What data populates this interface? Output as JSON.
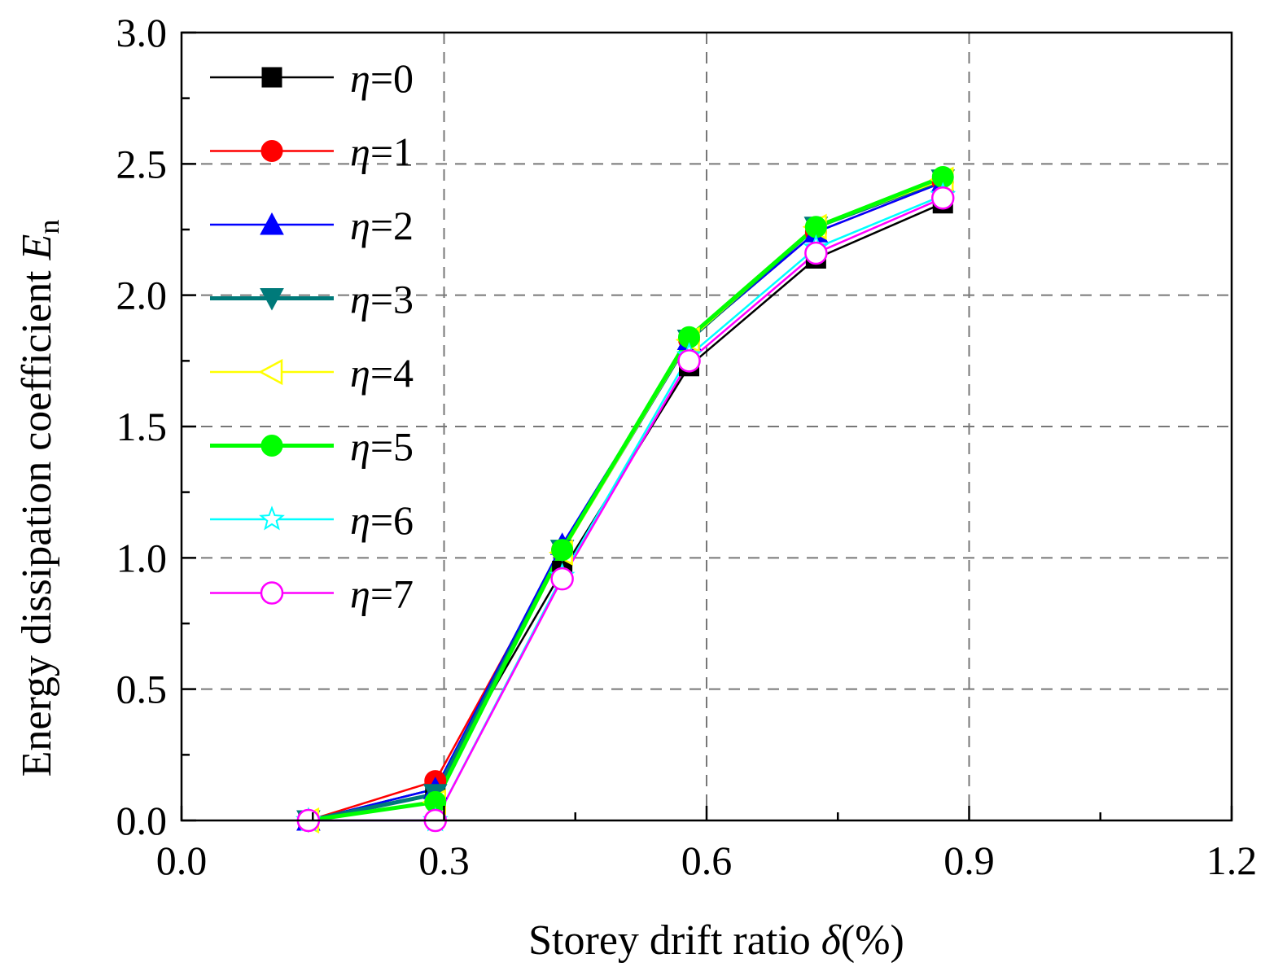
{
  "chart_data": {
    "type": "line",
    "title": "",
    "xlabel": "Storey drift ratio",
    "xlabel_symbol": "δ",
    "xlabel_unit": "(%)",
    "ylabel": "Energy dissipation coefficient",
    "ylabel_symbol": "E",
    "ylabel_subscript": "n",
    "xlim": [
      0.0,
      1.2
    ],
    "ylim": [
      0.0,
      3.0
    ],
    "xticks": [
      "0.0",
      "0.3",
      "0.6",
      "0.9",
      "1.2"
    ],
    "yticks": [
      "0.0",
      "0.5",
      "1.0",
      "1.5",
      "2.0",
      "2.5",
      "3.0"
    ],
    "grid": true,
    "legend_position": "top-left",
    "legend_symbol": "η",
    "x": [
      0.145,
      0.29,
      0.435,
      0.58,
      0.725,
      0.87
    ],
    "series": [
      {
        "name": "0",
        "color": "#000000",
        "marker": "square",
        "values": [
          0.0,
          0.12,
          0.95,
          1.73,
          2.14,
          2.35
        ]
      },
      {
        "name": "1",
        "color": "#ff0000",
        "marker": "circle",
        "values": [
          0.0,
          0.15,
          1.03,
          1.83,
          2.24,
          2.43
        ]
      },
      {
        "name": "2",
        "color": "#0000ff",
        "marker": "triangle-up",
        "values": [
          0.0,
          0.12,
          1.05,
          1.83,
          2.24,
          2.43
        ]
      },
      {
        "name": "3",
        "color": "#007a7a",
        "marker": "triangle-down",
        "values": [
          0.0,
          0.1,
          1.03,
          1.83,
          2.26,
          2.44
        ]
      },
      {
        "name": "4",
        "color": "#ffff00",
        "marker": "triangle-left",
        "values": [
          0.0,
          0.07,
          1.02,
          1.83,
          2.26,
          2.44
        ]
      },
      {
        "name": "5",
        "color": "#00ff00",
        "marker": "circle",
        "values": [
          0.0,
          0.07,
          1.03,
          1.84,
          2.26,
          2.45
        ]
      },
      {
        "name": "6",
        "color": "#00ffff",
        "marker": "star",
        "values": [
          0.0,
          0.0,
          0.93,
          1.77,
          2.18,
          2.38
        ]
      },
      {
        "name": "7",
        "color": "#ff00ff",
        "marker": "circle-open",
        "values": [
          0.0,
          0.0,
          0.92,
          1.75,
          2.16,
          2.37
        ]
      }
    ]
  }
}
